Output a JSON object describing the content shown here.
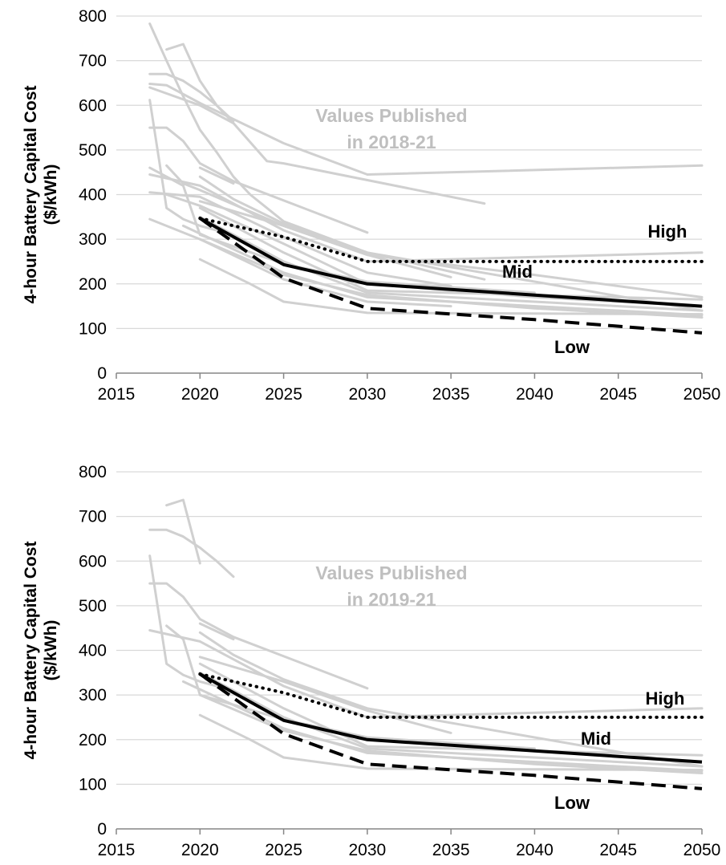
{
  "colors": {
    "published": "#d0d0d0",
    "published_label": "#bfbfbf",
    "scenario": "#000000",
    "grid": "#d9d9d9",
    "axis": "#868686"
  },
  "chart_data": [
    {
      "type": "line",
      "ylabel": "4-hour Battery Capital Cost ($/kWh)",
      "xlim": [
        2015,
        2050
      ],
      "ylim": [
        0,
        800
      ],
      "x_ticks": [
        "2015",
        "2020",
        "2025",
        "2030",
        "2035",
        "2040",
        "2045",
        "2050"
      ],
      "y_ticks": [
        "0",
        "100",
        "200",
        "300",
        "400",
        "500",
        "600",
        "700",
        "800"
      ],
      "grid": "horizontal",
      "annotation": "Values Published\nin 2018-21",
      "scenario_labels": [
        "High",
        "Mid",
        "Low"
      ],
      "scenarios": [
        {
          "name": "High",
          "style": "dotted",
          "points": [
            [
              2020,
              347
            ],
            [
              2025,
              305
            ],
            [
              2030,
              250
            ],
            [
              2050,
              250
            ]
          ]
        },
        {
          "name": "Mid",
          "style": "solid",
          "points": [
            [
              2020,
              347
            ],
            [
              2025,
              243
            ],
            [
              2030,
              200
            ],
            [
              2040,
              175
            ],
            [
              2050,
              150
            ]
          ]
        },
        {
          "name": "Low",
          "style": "dashed",
          "points": [
            [
              2020,
              347
            ],
            [
              2025,
              213
            ],
            [
              2030,
              145
            ],
            [
              2040,
              120
            ],
            [
              2050,
              90
            ]
          ]
        }
      ],
      "published_series": [
        [
          [
            2017,
            783
          ],
          [
            2018,
            700
          ],
          [
            2019,
            620
          ],
          [
            2020,
            545
          ],
          [
            2021,
            495
          ],
          [
            2022,
            440
          ],
          [
            2023,
            400
          ],
          [
            2025,
            340
          ],
          [
            2030,
            270
          ],
          [
            2037,
            210
          ]
        ],
        [
          [
            2018,
            725
          ],
          [
            2019,
            737
          ],
          [
            2020,
            655
          ],
          [
            2021,
            600
          ],
          [
            2022,
            560
          ]
        ],
        [
          [
            2017,
            670
          ],
          [
            2018,
            670
          ],
          [
            2019,
            655
          ],
          [
            2020,
            630
          ],
          [
            2021,
            600
          ],
          [
            2022,
            565
          ]
        ],
        [
          [
            2017,
            648
          ],
          [
            2018,
            645
          ],
          [
            2020,
            605
          ],
          [
            2025,
            515
          ],
          [
            2030,
            445
          ],
          [
            2050,
            465
          ]
        ],
        [
          [
            2017,
            640
          ],
          [
            2020,
            600
          ],
          [
            2022,
            560
          ],
          [
            2024,
            475
          ],
          [
            2025,
            470
          ],
          [
            2035,
            395
          ],
          [
            2037,
            380
          ]
        ],
        [
          [
            2017,
            612
          ],
          [
            2018,
            370
          ],
          [
            2019,
            345
          ],
          [
            2020,
            330
          ],
          [
            2021,
            320
          ]
        ],
        [
          [
            2017,
            550
          ],
          [
            2018,
            550
          ],
          [
            2019,
            520
          ],
          [
            2020,
            470
          ],
          [
            2022,
            430
          ],
          [
            2030,
            315
          ]
        ],
        [
          [
            2017,
            460
          ],
          [
            2018,
            440
          ],
          [
            2019,
            420
          ],
          [
            2020,
            310
          ],
          [
            2025,
            245
          ],
          [
            2030,
            205
          ],
          [
            2040,
            180
          ]
        ],
        [
          [
            2017,
            445
          ],
          [
            2020,
            420
          ],
          [
            2025,
            320
          ],
          [
            2030,
            250
          ],
          [
            2050,
            270
          ]
        ],
        [
          [
            2018,
            465
          ],
          [
            2019,
            425
          ],
          [
            2020,
            410
          ],
          [
            2025,
            330
          ],
          [
            2030,
            265
          ],
          [
            2040,
            220
          ],
          [
            2050,
            170
          ]
        ],
        [
          [
            2020,
            460
          ],
          [
            2022,
            425
          ]
        ],
        [
          [
            2020,
            440
          ],
          [
            2022,
            390
          ],
          [
            2025,
            335
          ],
          [
            2030,
            270
          ],
          [
            2040,
            205
          ],
          [
            2050,
            140
          ]
        ],
        [
          [
            2020,
            385
          ],
          [
            2025,
            330
          ],
          [
            2030,
            265
          ],
          [
            2035,
            215
          ]
        ],
        [
          [
            2018,
            400
          ],
          [
            2020,
            375
          ],
          [
            2025,
            290
          ],
          [
            2030,
            200
          ],
          [
            2040,
            170
          ],
          [
            2050,
            150
          ]
        ],
        [
          [
            2020,
            370
          ],
          [
            2025,
            270
          ],
          [
            2030,
            185
          ],
          [
            2050,
            165
          ]
        ],
        [
          [
            2020,
            350
          ],
          [
            2025,
            250
          ],
          [
            2030,
            180
          ],
          [
            2040,
            160
          ],
          [
            2050,
            140
          ]
        ],
        [
          [
            2017,
            405
          ],
          [
            2020,
            395
          ],
          [
            2025,
            305
          ],
          [
            2030,
            225
          ],
          [
            2035,
            195
          ]
        ],
        [
          [
            2019,
            330
          ],
          [
            2025,
            225
          ],
          [
            2030,
            170
          ],
          [
            2050,
            130
          ]
        ],
        [
          [
            2020,
            300
          ],
          [
            2025,
            220
          ],
          [
            2030,
            175
          ],
          [
            2040,
            145
          ],
          [
            2050,
            125
          ]
        ],
        [
          [
            2017,
            345
          ],
          [
            2020,
            300
          ],
          [
            2025,
            210
          ],
          [
            2030,
            160
          ],
          [
            2035,
            150
          ]
        ],
        [
          [
            2020,
            255
          ],
          [
            2023,
            200
          ],
          [
            2025,
            160
          ],
          [
            2030,
            135
          ],
          [
            2050,
            132
          ]
        ]
      ]
    },
    {
      "type": "line",
      "ylabel": "4-hour Battery Capital Cost ($/kWh)",
      "xlim": [
        2015,
        2050
      ],
      "ylim": [
        0,
        800
      ],
      "x_ticks": [
        "2015",
        "2020",
        "2025",
        "2030",
        "2035",
        "2040",
        "2045",
        "2050"
      ],
      "y_ticks": [
        "0",
        "100",
        "200",
        "300",
        "400",
        "500",
        "600",
        "700",
        "800"
      ],
      "grid": "horizontal",
      "annotation": "Values Published\nin 2019-21",
      "scenario_labels": [
        "High",
        "Mid",
        "Low"
      ],
      "scenarios": [
        {
          "name": "High",
          "style": "dotted",
          "points": [
            [
              2020,
              347
            ],
            [
              2025,
              305
            ],
            [
              2030,
              250
            ],
            [
              2050,
              250
            ]
          ]
        },
        {
          "name": "Mid",
          "style": "solid",
          "points": [
            [
              2020,
              347
            ],
            [
              2025,
              243
            ],
            [
              2030,
              200
            ],
            [
              2040,
              175
            ],
            [
              2050,
              150
            ]
          ]
        },
        {
          "name": "Low",
          "style": "dashed",
          "points": [
            [
              2020,
              347
            ],
            [
              2025,
              213
            ],
            [
              2030,
              145
            ],
            [
              2040,
              120
            ],
            [
              2050,
              90
            ]
          ]
        }
      ],
      "published_series": [
        [
          [
            2018,
            725
          ],
          [
            2019,
            737
          ],
          [
            2020,
            595
          ]
        ],
        [
          [
            2017,
            670
          ],
          [
            2018,
            670
          ],
          [
            2019,
            655
          ],
          [
            2020,
            630
          ],
          [
            2021,
            600
          ],
          [
            2022,
            565
          ]
        ],
        [
          [
            2017,
            612
          ],
          [
            2018,
            370
          ],
          [
            2019,
            345
          ],
          [
            2020,
            330
          ],
          [
            2021,
            320
          ]
        ],
        [
          [
            2017,
            550
          ],
          [
            2018,
            550
          ],
          [
            2019,
            520
          ],
          [
            2020,
            470
          ],
          [
            2022,
            430
          ],
          [
            2030,
            315
          ]
        ],
        [
          [
            2017,
            445
          ],
          [
            2020,
            420
          ],
          [
            2025,
            320
          ],
          [
            2030,
            250
          ],
          [
            2050,
            270
          ]
        ],
        [
          [
            2018,
            455
          ],
          [
            2019,
            425
          ],
          [
            2020,
            300
          ],
          [
            2025,
            245
          ],
          [
            2030,
            205
          ],
          [
            2040,
            180
          ]
        ],
        [
          [
            2020,
            460
          ],
          [
            2022,
            425
          ]
        ],
        [
          [
            2020,
            440
          ],
          [
            2022,
            390
          ],
          [
            2025,
            335
          ],
          [
            2030,
            270
          ],
          [
            2040,
            205
          ],
          [
            2050,
            140
          ]
        ],
        [
          [
            2020,
            385
          ],
          [
            2025,
            330
          ],
          [
            2030,
            265
          ],
          [
            2035,
            215
          ]
        ],
        [
          [
            2020,
            370
          ],
          [
            2025,
            270
          ],
          [
            2030,
            185
          ],
          [
            2050,
            165
          ]
        ],
        [
          [
            2020,
            350
          ],
          [
            2025,
            250
          ],
          [
            2030,
            180
          ],
          [
            2040,
            160
          ],
          [
            2050,
            140
          ]
        ],
        [
          [
            2019,
            330
          ],
          [
            2025,
            225
          ],
          [
            2030,
            170
          ],
          [
            2050,
            130
          ]
        ],
        [
          [
            2020,
            300
          ],
          [
            2025,
            220
          ],
          [
            2030,
            175
          ],
          [
            2040,
            145
          ],
          [
            2050,
            125
          ]
        ],
        [
          [
            2020,
            255
          ],
          [
            2023,
            200
          ],
          [
            2025,
            160
          ],
          [
            2030,
            135
          ],
          [
            2050,
            132
          ]
        ]
      ]
    }
  ]
}
